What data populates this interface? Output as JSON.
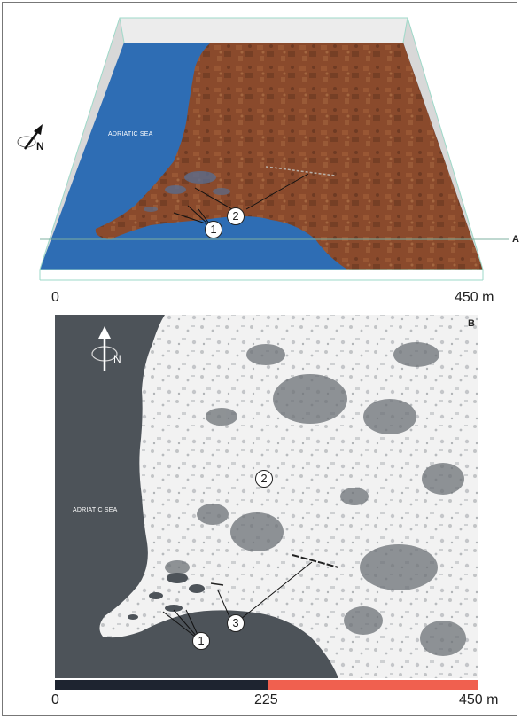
{
  "panel_a": {
    "panel_letter": "A",
    "sea_label": "ADRIATIC SEA",
    "north_label": "N",
    "markers": [
      "1",
      "2"
    ],
    "scale": {
      "start": "0",
      "end": "450 m"
    },
    "colors": {
      "sea": "#2E6DB4",
      "land": "#8A4A2C",
      "box": "#9ED9C8",
      "wall": "#D8D8D8"
    }
  },
  "panel_b": {
    "panel_letter": "B",
    "sea_label": "ADRIATIC SEA",
    "north_label": "N",
    "markers": [
      "1",
      "2",
      "3"
    ],
    "scale": {
      "start": "0",
      "mid": "225",
      "end": "450 m"
    },
    "colors": {
      "sea": "#4D5359",
      "land": "#F2F2F2",
      "scale_dark": "#1E2430",
      "scale_light": "#F0604F"
    }
  }
}
